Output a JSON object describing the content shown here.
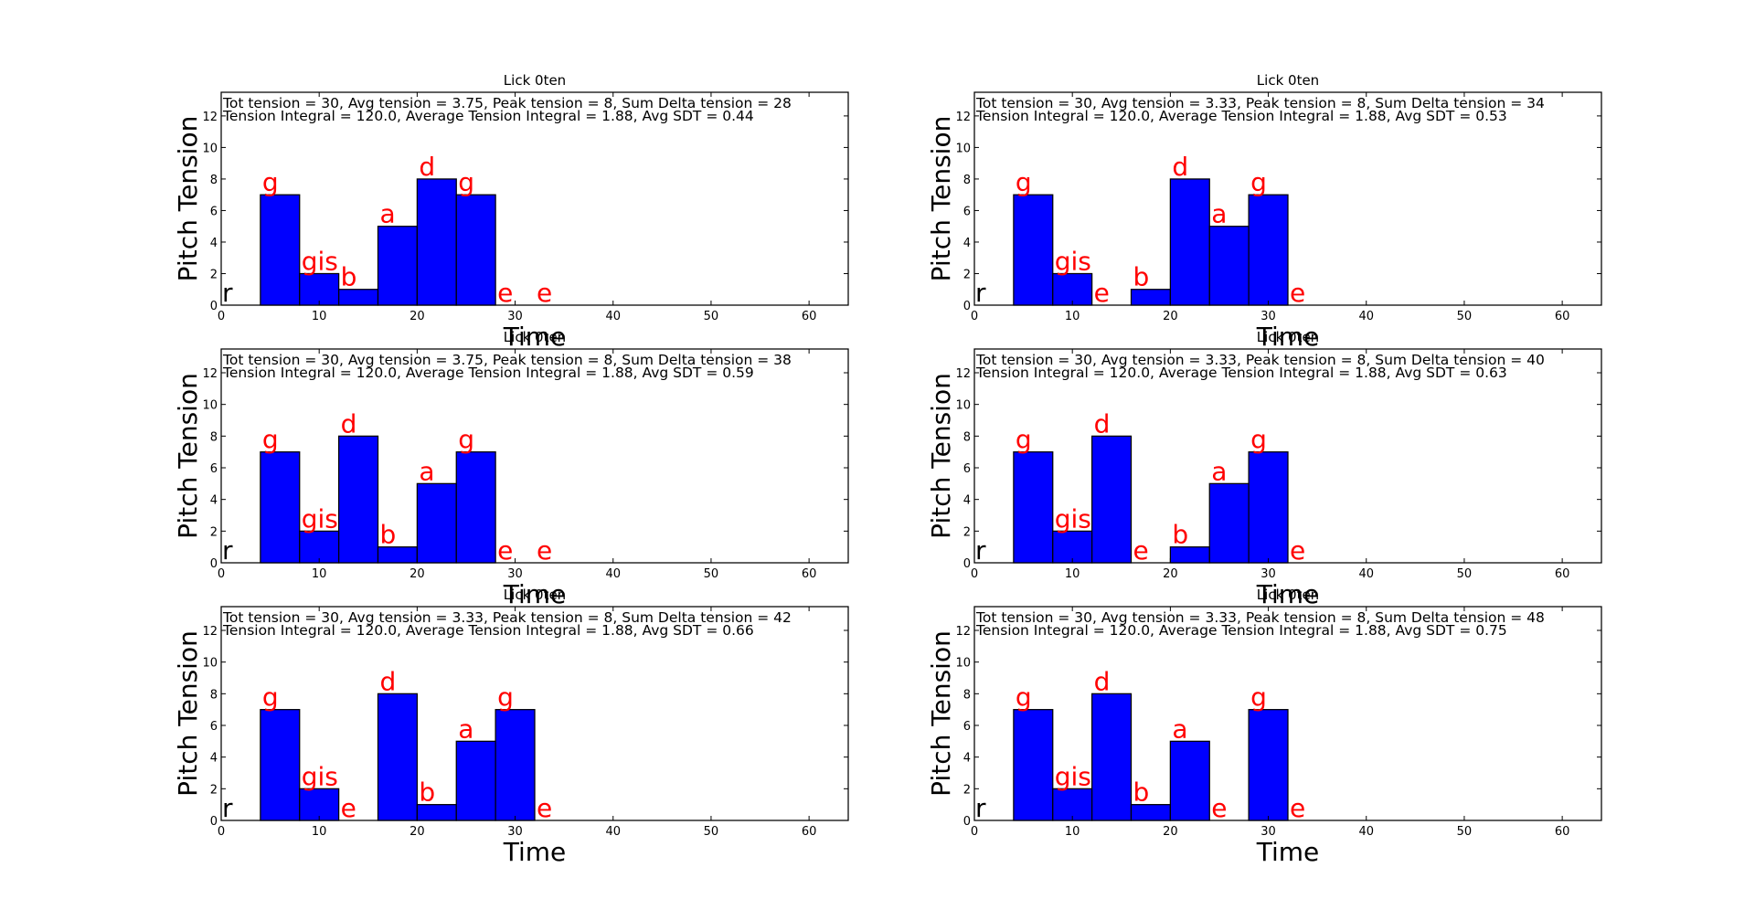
{
  "chart_data": [
    {
      "type": "bar",
      "title": "Lick 0ten",
      "stats_line1": "Tot tension = 30, Avg tension = 3.75, Peak tension = 8, Sum Delta tension = 28",
      "stats_line2": "Tension Integral = 120.0, Average Tension Integral = 1.88, Avg SDT = 0.44",
      "xlabel": "Time",
      "ylabel": "Pitch Tension",
      "xlim": [
        0,
        64
      ],
      "ylim": [
        0,
        13.5
      ],
      "xticks": [
        0,
        10,
        20,
        30,
        40,
        50,
        60
      ],
      "yticks": [
        0,
        2,
        4,
        6,
        8,
        10,
        12
      ],
      "notes": [
        {
          "label": "r",
          "start": 0,
          "value": 0
        },
        {
          "label": "g",
          "start": 4,
          "value": 7
        },
        {
          "label": "gis",
          "start": 8,
          "value": 2
        },
        {
          "label": "b",
          "start": 12,
          "value": 1
        },
        {
          "label": "a",
          "start": 16,
          "value": 5
        },
        {
          "label": "d",
          "start": 20,
          "value": 8
        },
        {
          "label": "g",
          "start": 24,
          "value": 7
        },
        {
          "label": "e",
          "start": 28,
          "value": 0
        },
        {
          "label": "e",
          "start": 32,
          "value": 0
        }
      ]
    },
    {
      "type": "bar",
      "title": "Lick 0ten",
      "stats_line1": "Tot tension = 30, Avg tension = 3.33, Peak tension = 8, Sum Delta tension = 34",
      "stats_line2": "Tension Integral = 120.0, Average Tension Integral = 1.88, Avg SDT = 0.53",
      "xlabel": "Time",
      "ylabel": "Pitch Tension",
      "xlim": [
        0,
        64
      ],
      "ylim": [
        0,
        13.5
      ],
      "xticks": [
        0,
        10,
        20,
        30,
        40,
        50,
        60
      ],
      "yticks": [
        0,
        2,
        4,
        6,
        8,
        10,
        12
      ],
      "notes": [
        {
          "label": "r",
          "start": 0,
          "value": 0
        },
        {
          "label": "g",
          "start": 4,
          "value": 7
        },
        {
          "label": "gis",
          "start": 8,
          "value": 2
        },
        {
          "label": "e",
          "start": 12,
          "value": 0
        },
        {
          "label": "b",
          "start": 16,
          "value": 1
        },
        {
          "label": "d",
          "start": 20,
          "value": 8
        },
        {
          "label": "a",
          "start": 24,
          "value": 5
        },
        {
          "label": "g",
          "start": 28,
          "value": 7
        },
        {
          "label": "e",
          "start": 32,
          "value": 0
        }
      ]
    },
    {
      "type": "bar",
      "title": "Lick 0ten",
      "stats_line1": "Tot tension = 30, Avg tension = 3.75, Peak tension = 8, Sum Delta tension = 38",
      "stats_line2": "Tension Integral = 120.0, Average Tension Integral = 1.88, Avg SDT = 0.59",
      "xlabel": "Time",
      "ylabel": "Pitch Tension",
      "xlim": [
        0,
        64
      ],
      "ylim": [
        0,
        13.5
      ],
      "xticks": [
        0,
        10,
        20,
        30,
        40,
        50,
        60
      ],
      "yticks": [
        0,
        2,
        4,
        6,
        8,
        10,
        12
      ],
      "notes": [
        {
          "label": "r",
          "start": 0,
          "value": 0
        },
        {
          "label": "g",
          "start": 4,
          "value": 7
        },
        {
          "label": "gis",
          "start": 8,
          "value": 2
        },
        {
          "label": "d",
          "start": 12,
          "value": 8
        },
        {
          "label": "b",
          "start": 16,
          "value": 1
        },
        {
          "label": "a",
          "start": 20,
          "value": 5
        },
        {
          "label": "g",
          "start": 24,
          "value": 7
        },
        {
          "label": "e",
          "start": 28,
          "value": 0
        },
        {
          "label": "e",
          "start": 32,
          "value": 0
        }
      ]
    },
    {
      "type": "bar",
      "title": "Lick 0ten",
      "stats_line1": "Tot tension = 30, Avg tension = 3.33, Peak tension = 8, Sum Delta tension = 40",
      "stats_line2": "Tension Integral = 120.0, Average Tension Integral = 1.88, Avg SDT = 0.63",
      "xlabel": "Time",
      "ylabel": "Pitch Tension",
      "xlim": [
        0,
        64
      ],
      "ylim": [
        0,
        13.5
      ],
      "xticks": [
        0,
        10,
        20,
        30,
        40,
        50,
        60
      ],
      "yticks": [
        0,
        2,
        4,
        6,
        8,
        10,
        12
      ],
      "notes": [
        {
          "label": "r",
          "start": 0,
          "value": 0
        },
        {
          "label": "g",
          "start": 4,
          "value": 7
        },
        {
          "label": "gis",
          "start": 8,
          "value": 2
        },
        {
          "label": "d",
          "start": 12,
          "value": 8
        },
        {
          "label": "e",
          "start": 16,
          "value": 0
        },
        {
          "label": "b",
          "start": 20,
          "value": 1
        },
        {
          "label": "a",
          "start": 24,
          "value": 5
        },
        {
          "label": "g",
          "start": 28,
          "value": 7
        },
        {
          "label": "e",
          "start": 32,
          "value": 0
        }
      ]
    },
    {
      "type": "bar",
      "title": "Lick 0ten",
      "stats_line1": "Tot tension = 30, Avg tension = 3.33, Peak tension = 8, Sum Delta tension = 42",
      "stats_line2": "Tension Integral = 120.0, Average Tension Integral = 1.88, Avg SDT = 0.66",
      "xlabel": "Time",
      "ylabel": "Pitch Tension",
      "xlim": [
        0,
        64
      ],
      "ylim": [
        0,
        13.5
      ],
      "xticks": [
        0,
        10,
        20,
        30,
        40,
        50,
        60
      ],
      "yticks": [
        0,
        2,
        4,
        6,
        8,
        10,
        12
      ],
      "notes": [
        {
          "label": "r",
          "start": 0,
          "value": 0
        },
        {
          "label": "g",
          "start": 4,
          "value": 7
        },
        {
          "label": "gis",
          "start": 8,
          "value": 2
        },
        {
          "label": "e",
          "start": 12,
          "value": 0
        },
        {
          "label": "d",
          "start": 16,
          "value": 8
        },
        {
          "label": "b",
          "start": 20,
          "value": 1
        },
        {
          "label": "a",
          "start": 24,
          "value": 5
        },
        {
          "label": "g",
          "start": 28,
          "value": 7
        },
        {
          "label": "e",
          "start": 32,
          "value": 0
        }
      ]
    },
    {
      "type": "bar",
      "title": "Lick 0ten",
      "stats_line1": "Tot tension = 30, Avg tension = 3.33, Peak tension = 8, Sum Delta tension = 48",
      "stats_line2": "Tension Integral = 120.0, Average Tension Integral = 1.88, Avg SDT = 0.75",
      "xlabel": "Time",
      "ylabel": "Pitch Tension",
      "xlim": [
        0,
        64
      ],
      "ylim": [
        0,
        13.5
      ],
      "xticks": [
        0,
        10,
        20,
        30,
        40,
        50,
        60
      ],
      "yticks": [
        0,
        2,
        4,
        6,
        8,
        10,
        12
      ],
      "notes": [
        {
          "label": "r",
          "start": 0,
          "value": 0
        },
        {
          "label": "g",
          "start": 4,
          "value": 7
        },
        {
          "label": "gis",
          "start": 8,
          "value": 2
        },
        {
          "label": "d",
          "start": 12,
          "value": 8
        },
        {
          "label": "b",
          "start": 16,
          "value": 1
        },
        {
          "label": "a",
          "start": 20,
          "value": 5
        },
        {
          "label": "e",
          "start": 24,
          "value": 0
        },
        {
          "label": "g",
          "start": 28,
          "value": 7
        },
        {
          "label": "e",
          "start": 32,
          "value": 0
        }
      ]
    }
  ],
  "colors": {
    "bar_fill": "#0000ff",
    "bar_edge": "#000000",
    "note_label": "#ff0000",
    "rest_label": "#000000"
  }
}
